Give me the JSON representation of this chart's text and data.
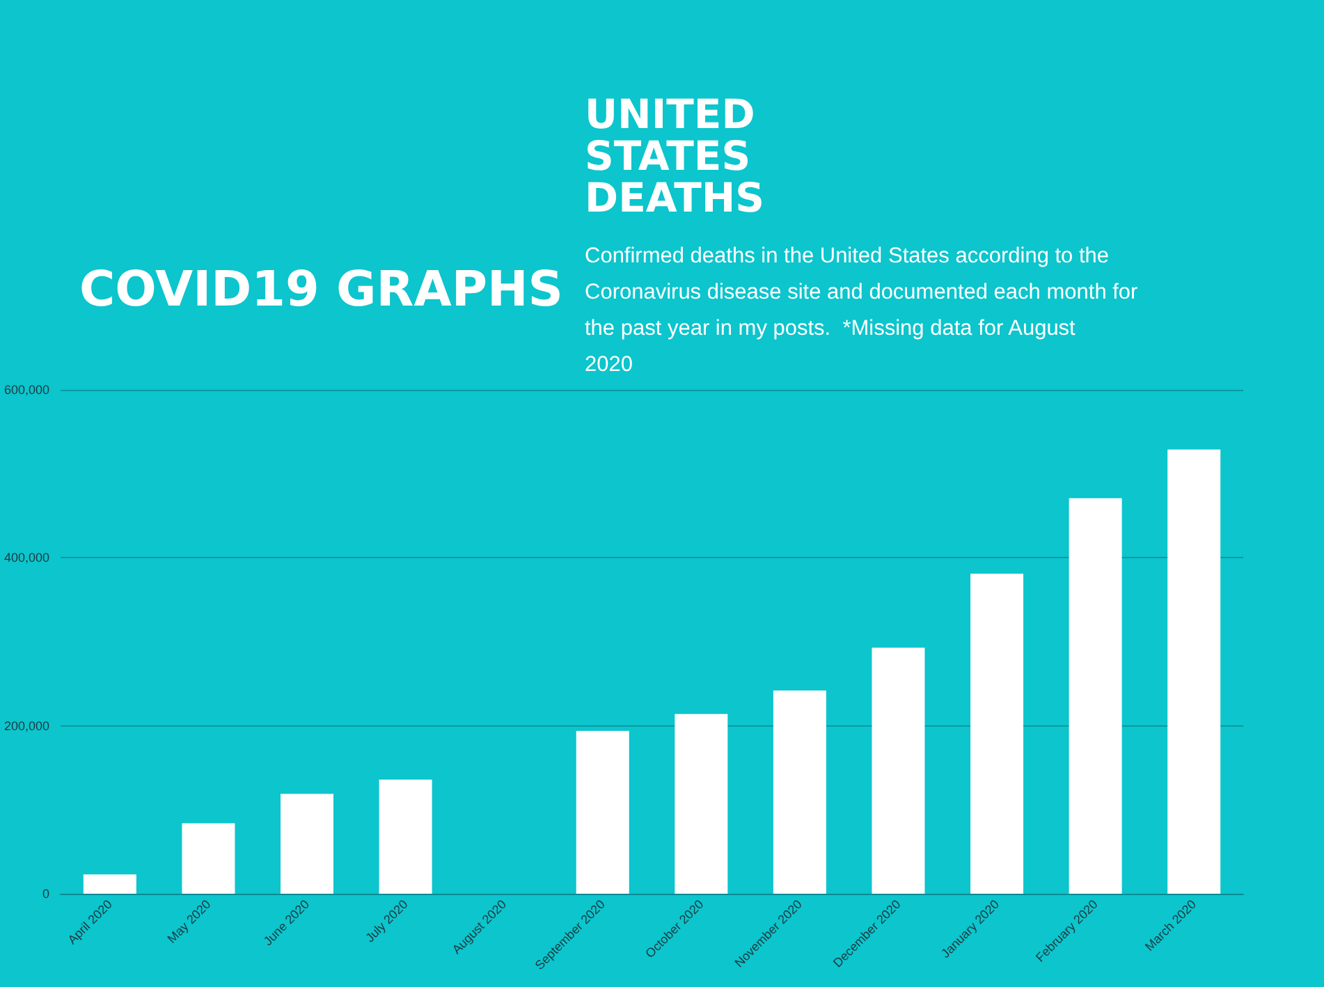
{
  "chart_data": {
    "type": "bar",
    "title": "UNITED STATES DEATHS",
    "subtitle": "Confirmed deaths in the United States according to the Coronavirus disease site and documented each month for the past year in my posts.  *Missing data for August 2020",
    "annotations": [
      "COVID19 GRAPHS"
    ],
    "categories": [
      "April 2020",
      "May 2020",
      "June 2020",
      "July 2020",
      "August 2020",
      "September 2020",
      "October 2020",
      "November 2020",
      "December 2020",
      "January 2020",
      "February 2020",
      "March 2020"
    ],
    "values": [
      23000,
      84000,
      119000,
      136000,
      null,
      194000,
      214000,
      242000,
      293000,
      381000,
      471000,
      529000
    ],
    "color": "#ffffff",
    "ylim": [
      0,
      600000
    ],
    "yticks": [
      {
        "value": 0,
        "label": "0"
      },
      {
        "value": 200000,
        "label": "200,000"
      },
      {
        "value": 400000,
        "label": "400,000"
      },
      {
        "value": 600000,
        "label": "600,000"
      }
    ],
    "grid": "y"
  }
}
